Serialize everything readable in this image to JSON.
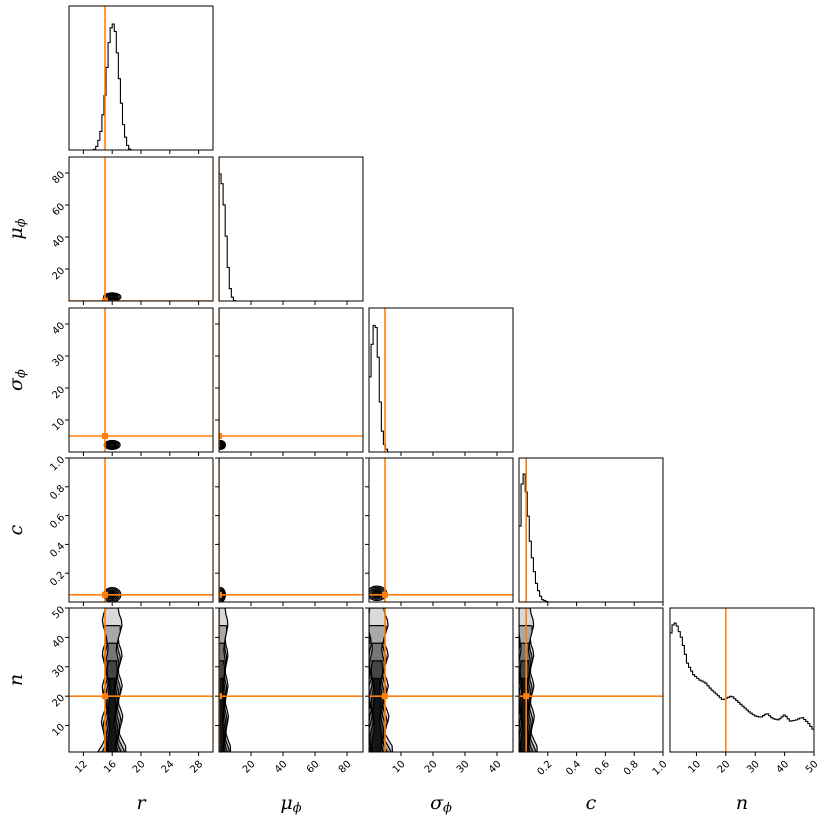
{
  "chart_data": {
    "type": "corner",
    "parameters": [
      {
        "key": "r",
        "label": "r",
        "sub": "",
        "range": [
          10,
          30
        ],
        "ticks": [
          12,
          16,
          20,
          24,
          28
        ],
        "truth": 15
      },
      {
        "key": "mu",
        "label": "μ",
        "sub": "ϕ",
        "range": [
          0,
          90
        ],
        "ticks": [
          20,
          40,
          60,
          80
        ],
        "truth": 0
      },
      {
        "key": "sigma",
        "label": "σ",
        "sub": "ϕ",
        "range": [
          0,
          45
        ],
        "ticks": [
          10,
          20,
          30,
          40
        ],
        "truth": 5
      },
      {
        "key": "c",
        "label": "c",
        "sub": "",
        "range": [
          0,
          1.0
        ],
        "ticks": [
          0.2,
          0.4,
          0.6,
          0.8,
          1.0
        ],
        "truth": 0.05
      },
      {
        "key": "n",
        "label": "n",
        "sub": "",
        "range": [
          1,
          50
        ],
        "ticks": [
          10,
          20,
          30,
          40,
          50
        ],
        "truth": 20
      }
    ],
    "tick_labels": {
      "r": [
        "12",
        "16",
        "20",
        "24",
        "28"
      ],
      "mu": [
        "20",
        "40",
        "60",
        "80"
      ],
      "sigma": [
        "10",
        "20",
        "30",
        "40"
      ],
      "c": [
        "0.2",
        "0.4",
        "0.6",
        "0.8",
        "1.0"
      ],
      "n": [
        "10",
        "20",
        "30",
        "40",
        "50"
      ]
    },
    "marginals": {
      "r": {
        "x": [
          13.5,
          14.0,
          14.5,
          15.0,
          15.5,
          16.0,
          16.5,
          17.0,
          17.5,
          18.0,
          18.5
        ],
        "y": [
          0.0,
          0.04,
          0.16,
          0.42,
          0.8,
          1.0,
          0.9,
          0.55,
          0.22,
          0.05,
          0.0
        ]
      },
      "mu": {
        "x": [
          0,
          1,
          2,
          3,
          4,
          5,
          6,
          7,
          8,
          9,
          10
        ],
        "y": [
          1.0,
          0.97,
          0.9,
          0.78,
          0.6,
          0.4,
          0.22,
          0.1,
          0.04,
          0.01,
          0.0
        ]
      },
      "sigma": {
        "x": [
          0.5,
          1.0,
          1.5,
          2.0,
          2.5,
          3.0,
          3.5,
          4.0,
          4.5,
          5.0,
          5.5,
          6.0
        ],
        "y": [
          0.58,
          0.85,
          0.97,
          1.0,
          0.92,
          0.68,
          0.4,
          0.2,
          0.09,
          0.04,
          0.02,
          0.0
        ]
      },
      "c": {
        "x": [
          0.005,
          0.01,
          0.02,
          0.03,
          0.04,
          0.05,
          0.06,
          0.08,
          0.1,
          0.12,
          0.14,
          0.16,
          0.2
        ],
        "y": [
          0.5,
          0.7,
          0.9,
          0.97,
          1.0,
          0.85,
          0.72,
          0.45,
          0.28,
          0.15,
          0.07,
          0.02,
          0.0
        ]
      },
      "n": {
        "x": [
          1,
          2,
          3,
          5,
          7,
          9,
          11,
          13,
          15,
          17,
          19,
          20,
          22,
          24,
          26,
          28,
          30,
          32,
          34,
          36,
          38,
          40,
          42,
          44,
          46,
          48,
          50
        ],
        "y": [
          0.86,
          0.95,
          0.97,
          0.85,
          0.66,
          0.58,
          0.54,
          0.52,
          0.47,
          0.43,
          0.39,
          0.4,
          0.42,
          0.38,
          0.34,
          0.3,
          0.27,
          0.26,
          0.29,
          0.25,
          0.24,
          0.28,
          0.23,
          0.24,
          0.26,
          0.22,
          0.16
        ]
      }
    },
    "truth_color": "#ff7f0e",
    "contour_fill_colors": [
      "#d9d9d9",
      "#a8a8a8",
      "#767676",
      "#454545",
      "#151515"
    ]
  }
}
